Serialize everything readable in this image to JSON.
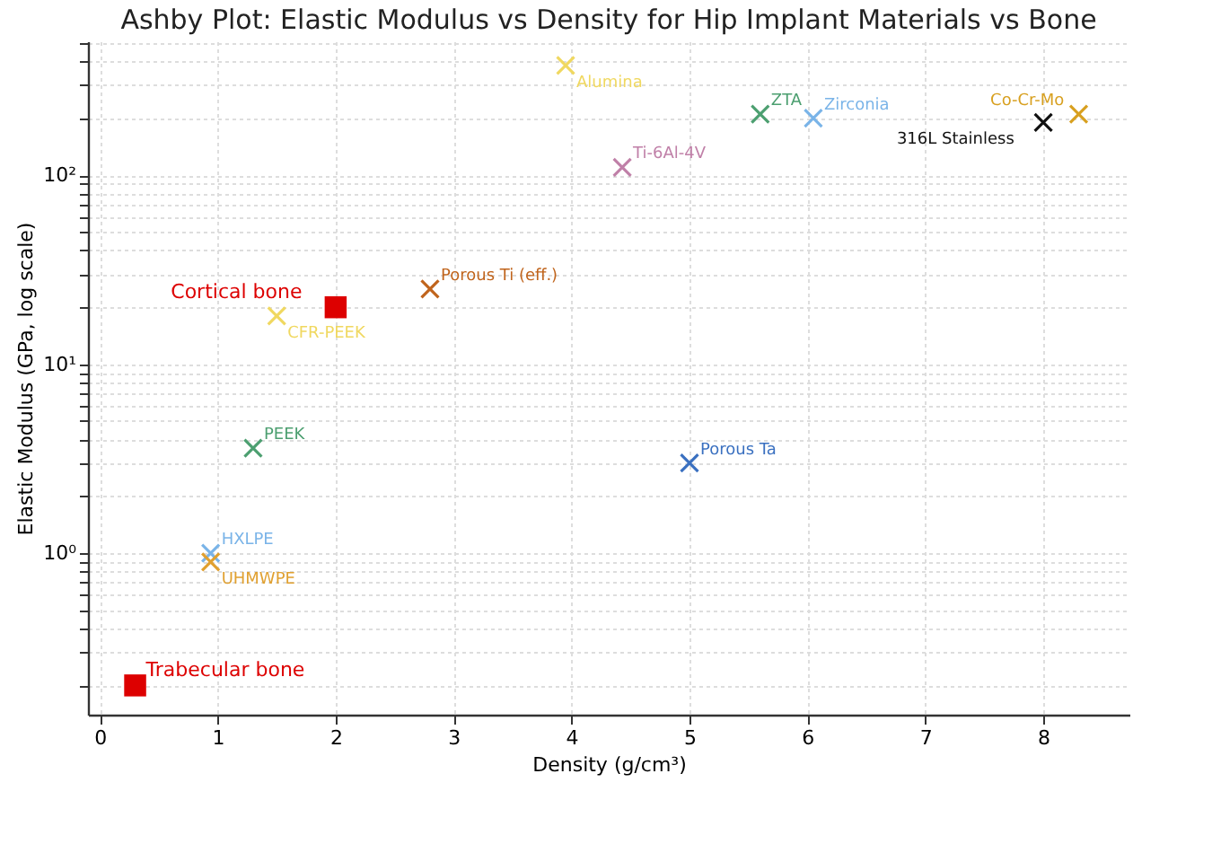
{
  "chart_data": {
    "type": "scatter",
    "title": "Ashby Plot: Elastic Modulus vs Density for Hip Implant Materials vs Bone",
    "xlabel": "Density (g/cm³)",
    "ylabel": "Elastic Modulus (GPa, log scale)",
    "xlim": [
      -0.1,
      8.73
    ],
    "xticks": [
      0,
      1,
      2,
      3,
      4,
      5,
      6,
      7,
      8
    ],
    "ylim": [
      0.14,
      510
    ],
    "log": "y",
    "yticks": [
      {
        "value": 0.2,
        "label": null
      },
      {
        "value": 0.3,
        "label": null
      },
      {
        "value": 0.4,
        "label": null
      },
      {
        "value": 0.5,
        "label": null
      },
      {
        "value": 0.6,
        "label": null
      },
      {
        "value": 0.7,
        "label": null
      },
      {
        "value": 0.8,
        "label": null
      },
      {
        "value": 0.9,
        "label": null
      },
      {
        "value": 1,
        "label": "10⁰"
      },
      {
        "value": 2,
        "label": null
      },
      {
        "value": 3,
        "label": null
      },
      {
        "value": 4,
        "label": null
      },
      {
        "value": 5,
        "label": null
      },
      {
        "value": 6,
        "label": null
      },
      {
        "value": 7,
        "label": null
      },
      {
        "value": 8,
        "label": null
      },
      {
        "value": 9,
        "label": null
      },
      {
        "value": 10,
        "label": "10¹"
      },
      {
        "value": 20,
        "label": null
      },
      {
        "value": 30,
        "label": null
      },
      {
        "value": 40,
        "label": null
      },
      {
        "value": 50,
        "label": null
      },
      {
        "value": 60,
        "label": null
      },
      {
        "value": 70,
        "label": null
      },
      {
        "value": 80,
        "label": null
      },
      {
        "value": 90,
        "label": null
      },
      {
        "value": 100,
        "label": "10²"
      },
      {
        "value": 200,
        "label": null
      },
      {
        "value": 300,
        "label": null
      },
      {
        "value": 400,
        "label": null
      },
      {
        "value": 500,
        "label": null
      }
    ],
    "grid": true,
    "series": [
      {
        "name": "Trabecular bone",
        "color": "#dd0000",
        "marker": "square",
        "x": [
          0.3
        ],
        "values": [
          0.2
        ]
      },
      {
        "name": "HXLPE",
        "color": "#7ab4e8",
        "marker": "cross",
        "x": [
          0.94
        ],
        "values": [
          1.0
        ]
      },
      {
        "name": "UHMWPE",
        "color": "#e0a030",
        "marker": "cross",
        "x": [
          0.94
        ],
        "values": [
          0.9
        ]
      },
      {
        "name": "PEEK",
        "color": "#4c9f70",
        "marker": "cross",
        "x": [
          1.3
        ],
        "values": [
          3.6
        ]
      },
      {
        "name": "CFR-PEEK",
        "color": "#f0d860",
        "marker": "cross",
        "x": [
          1.5
        ],
        "values": [
          18
        ]
      },
      {
        "name": "Cortical bone",
        "color": "#dd0000",
        "marker": "square",
        "x": [
          2.0
        ],
        "values": [
          20
        ]
      },
      {
        "name": "Porous Ti (eff.)",
        "color": "#c0641c",
        "marker": "cross",
        "x": [
          2.8
        ],
        "values": [
          25
        ]
      },
      {
        "name": "Alumina",
        "color": "#f0d860",
        "marker": "cross",
        "x": [
          3.95
        ],
        "values": [
          380
        ]
      },
      {
        "name": "Ti-6Al-4V",
        "color": "#c080a8",
        "marker": "cross",
        "x": [
          4.43
        ],
        "values": [
          110
        ]
      },
      {
        "name": "Porous Ta",
        "color": "#3a70c0",
        "marker": "cross",
        "x": [
          5.0
        ],
        "values": [
          3.0
        ]
      },
      {
        "name": "ZTA",
        "color": "#4c9f70",
        "marker": "cross",
        "x": [
          5.6
        ],
        "values": [
          210
        ]
      },
      {
        "name": "Zirconia",
        "color": "#7ab4e8",
        "marker": "cross",
        "x": [
          6.05
        ],
        "values": [
          200
        ]
      },
      {
        "name": "316L Stainless",
        "color": "#111111",
        "marker": "cross",
        "x": [
          8.0
        ],
        "values": [
          190
        ]
      },
      {
        "name": "Co-Cr-Mo",
        "color": "#d8a020",
        "marker": "cross",
        "x": [
          8.3
        ],
        "values": [
          210
        ]
      }
    ]
  }
}
